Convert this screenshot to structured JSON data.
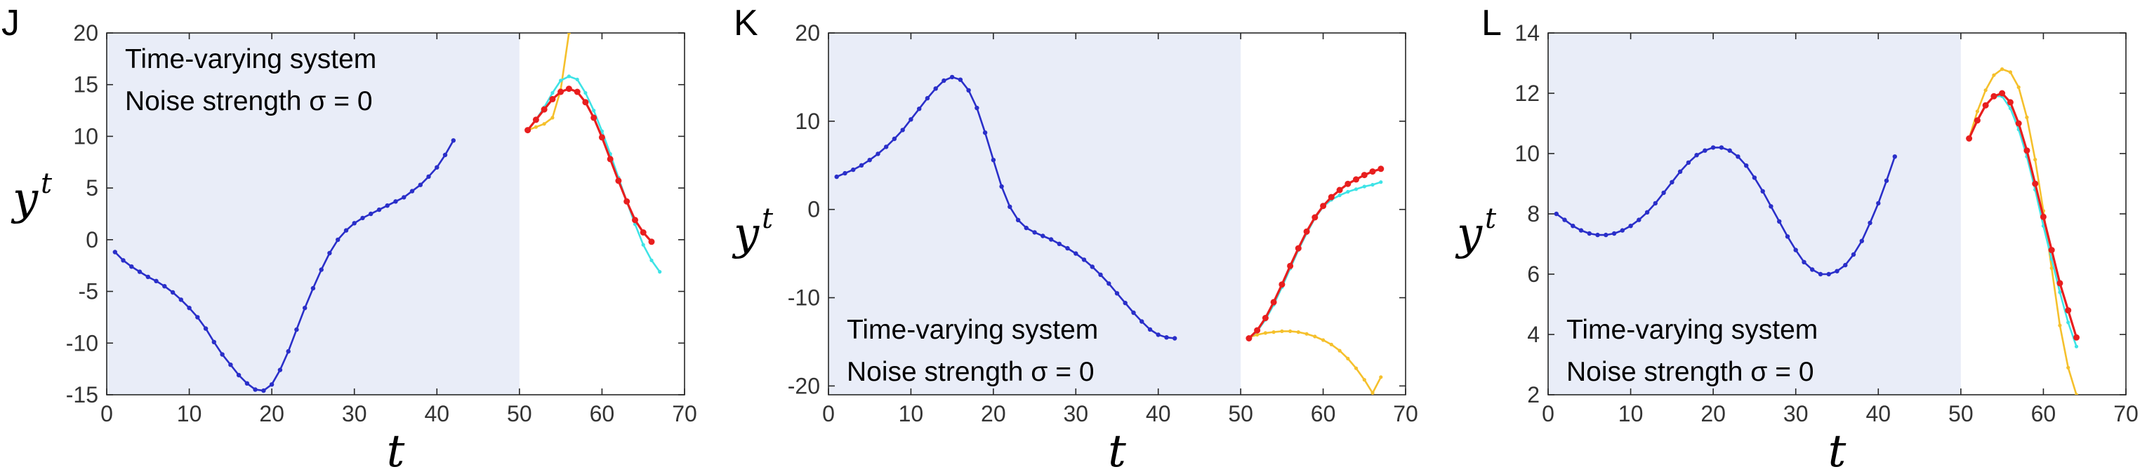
{
  "chart_data": [
    {
      "panel": "J",
      "type": "line",
      "annotation": [
        "Time-varying system",
        "Noise strength σ = 0"
      ],
      "annotation_pos": "top-left",
      "xlabel": "t",
      "ylabel": "y",
      "ylabel_sup": "t",
      "xlim": [
        0,
        70
      ],
      "ylim": [
        -15,
        20
      ],
      "xticks": [
        "0",
        "10",
        "20",
        "30",
        "40",
        "50",
        "60",
        "70"
      ],
      "yticks": [
        "-15",
        "-10",
        "-5",
        "0",
        "5",
        "10",
        "15",
        "20"
      ],
      "shaded_region": [
        0,
        50
      ],
      "colors": {
        "history": "#2a2fc9",
        "truth": "#3ee3e6",
        "prediction": "#e81e1e",
        "baseline": "#f5c02c",
        "shade": "#e9edf8"
      },
      "series": [
        {
          "role": "history",
          "x_start": 1,
          "values": [
            -1.2,
            -2.0,
            -2.6,
            -3.1,
            -3.6,
            -4.0,
            -4.5,
            -5.1,
            -5.8,
            -6.6,
            -7.5,
            -8.6,
            -9.9,
            -11.1,
            -12.1,
            -13.1,
            -13.9,
            -14.5,
            -14.6,
            -14.0,
            -12.6,
            -10.8,
            -8.7,
            -6.6,
            -4.7,
            -2.9,
            -1.3,
            0.0,
            0.9,
            1.6,
            2.1,
            2.5,
            2.9,
            3.3,
            3.7,
            4.1,
            4.7,
            5.3,
            6.1,
            7.0,
            8.2,
            9.6
          ]
        },
        {
          "role": "truth",
          "x_start": 51,
          "values": [
            10.6,
            11.6,
            12.8,
            14.2,
            15.4,
            15.8,
            15.5,
            14.2,
            12.5,
            10.5,
            8.3,
            6.0,
            3.7,
            1.5,
            -0.5,
            -2.0,
            -3.1
          ]
        },
        {
          "role": "prediction",
          "x_start": 51,
          "values": [
            10.6,
            11.6,
            12.6,
            13.6,
            14.3,
            14.6,
            14.3,
            13.3,
            11.8,
            9.9,
            7.8,
            5.7,
            3.7,
            1.9,
            0.7,
            -0.2
          ]
        },
        {
          "role": "baseline",
          "x_start": 51,
          "values": [
            10.6,
            10.9,
            11.2,
            11.8,
            14.5,
            20.0
          ]
        }
      ]
    },
    {
      "panel": "K",
      "type": "line",
      "annotation": [
        "Time-varying system",
        "Noise strength σ = 0"
      ],
      "annotation_pos": "bottom-left",
      "xlabel": "t",
      "ylabel": "y",
      "ylabel_sup": "t",
      "xlim": [
        0,
        70
      ],
      "ylim": [
        -21,
        20
      ],
      "xticks": [
        "0",
        "10",
        "20",
        "30",
        "40",
        "50",
        "60",
        "70"
      ],
      "yticks": [
        "-20",
        "-10",
        "0",
        "10",
        "20"
      ],
      "shaded_region": [
        0,
        50
      ],
      "colors": {
        "history": "#2a2fc9",
        "truth": "#3ee3e6",
        "prediction": "#e81e1e",
        "baseline": "#f5c02c",
        "shade": "#e9edf8"
      },
      "series": [
        {
          "role": "history",
          "x_start": 1,
          "values": [
            3.7,
            4.1,
            4.5,
            5.0,
            5.6,
            6.3,
            7.1,
            8.0,
            9.0,
            10.2,
            11.4,
            12.6,
            13.7,
            14.6,
            15.0,
            14.7,
            13.5,
            11.5,
            8.7,
            5.6,
            2.6,
            0.3,
            -1.2,
            -2.1,
            -2.6,
            -3.0,
            -3.4,
            -3.9,
            -4.4,
            -5.0,
            -5.7,
            -6.5,
            -7.4,
            -8.4,
            -9.5,
            -10.6,
            -11.7,
            -12.7,
            -13.6,
            -14.2,
            -14.5,
            -14.6
          ]
        },
        {
          "role": "truth",
          "x_start": 51,
          "values": [
            -14.6,
            -13.8,
            -12.5,
            -10.8,
            -8.8,
            -6.7,
            -4.6,
            -2.7,
            -1.0,
            0.3,
            1.1,
            1.6,
            2.0,
            2.3,
            2.6,
            2.8,
            3.1
          ]
        },
        {
          "role": "prediction",
          "x_start": 51,
          "values": [
            -14.6,
            -13.7,
            -12.3,
            -10.5,
            -8.5,
            -6.4,
            -4.4,
            -2.5,
            -0.9,
            0.4,
            1.4,
            2.2,
            2.9,
            3.4,
            3.9,
            4.3,
            4.6
          ]
        },
        {
          "role": "baseline",
          "x_start": 51,
          "values": [
            -14.5,
            -14.2,
            -14.0,
            -13.9,
            -13.8,
            -13.8,
            -13.9,
            -14.1,
            -14.4,
            -14.8,
            -15.3,
            -16.0,
            -16.9,
            -18.0,
            -19.3,
            -20.8,
            -19.0
          ]
        }
      ]
    },
    {
      "panel": "L",
      "type": "line",
      "annotation": [
        "Time-varying system",
        "Noise strength σ = 0"
      ],
      "annotation_pos": "bottom-left",
      "xlabel": "t",
      "ylabel": "y",
      "ylabel_sup": "t",
      "xlim": [
        0,
        70
      ],
      "ylim": [
        2,
        14
      ],
      "xticks": [
        "0",
        "10",
        "20",
        "30",
        "40",
        "50",
        "60",
        "70"
      ],
      "yticks": [
        "2",
        "4",
        "6",
        "8",
        "10",
        "12",
        "14"
      ],
      "shaded_region": [
        0,
        50
      ],
      "colors": {
        "history": "#2a2fc9",
        "truth": "#3ee3e6",
        "prediction": "#e81e1e",
        "baseline": "#f5c02c",
        "shade": "#e9edf8"
      },
      "series": [
        {
          "role": "history",
          "x_start": 1,
          "values": [
            8.0,
            7.8,
            7.6,
            7.45,
            7.35,
            7.3,
            7.3,
            7.35,
            7.45,
            7.6,
            7.8,
            8.05,
            8.35,
            8.7,
            9.05,
            9.4,
            9.7,
            9.95,
            10.1,
            10.2,
            10.2,
            10.1,
            9.9,
            9.6,
            9.2,
            8.75,
            8.25,
            7.75,
            7.25,
            6.8,
            6.4,
            6.15,
            6.0,
            6.0,
            6.1,
            6.3,
            6.65,
            7.1,
            7.7,
            8.35,
            9.1,
            9.9
          ]
        },
        {
          "role": "truth",
          "x_start": 51,
          "values": [
            10.5,
            11.1,
            11.6,
            11.9,
            11.9,
            11.5,
            10.8,
            9.9,
            8.8,
            7.6,
            6.5,
            5.4,
            4.4,
            3.6
          ]
        },
        {
          "role": "prediction",
          "x_start": 51,
          "values": [
            10.5,
            11.1,
            11.6,
            11.9,
            12.0,
            11.7,
            11.0,
            10.1,
            9.0,
            7.9,
            6.8,
            5.7,
            4.8,
            3.9
          ]
        },
        {
          "role": "baseline",
          "x_start": 51,
          "values": [
            10.5,
            11.4,
            12.1,
            12.6,
            12.8,
            12.7,
            12.2,
            11.2,
            9.8,
            8.1,
            6.2,
            4.3,
            2.9,
            2.0
          ]
        }
      ]
    }
  ]
}
